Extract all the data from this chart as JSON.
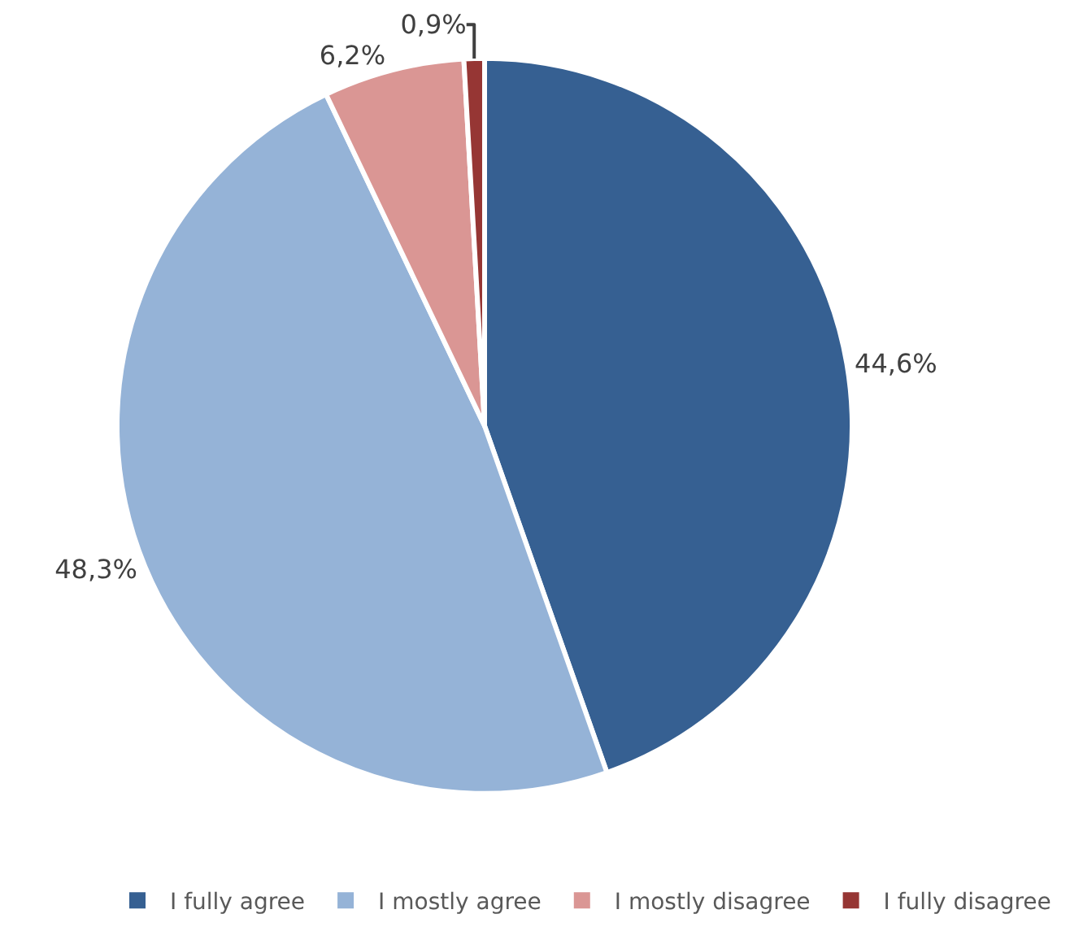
{
  "chart_data": {
    "type": "pie",
    "categories": [
      "I fully agree",
      "I mostly agree",
      "I mostly disagree",
      "I fully disagree"
    ],
    "values": [
      44.6,
      48.3,
      6.2,
      0.9
    ],
    "colors": [
      "#366092",
      "#95b3d7",
      "#da9694",
      "#963634"
    ],
    "value_labels": [
      "44,6%",
      "48,3%",
      "6,2%",
      "0,9%"
    ],
    "legend": "bottom"
  }
}
